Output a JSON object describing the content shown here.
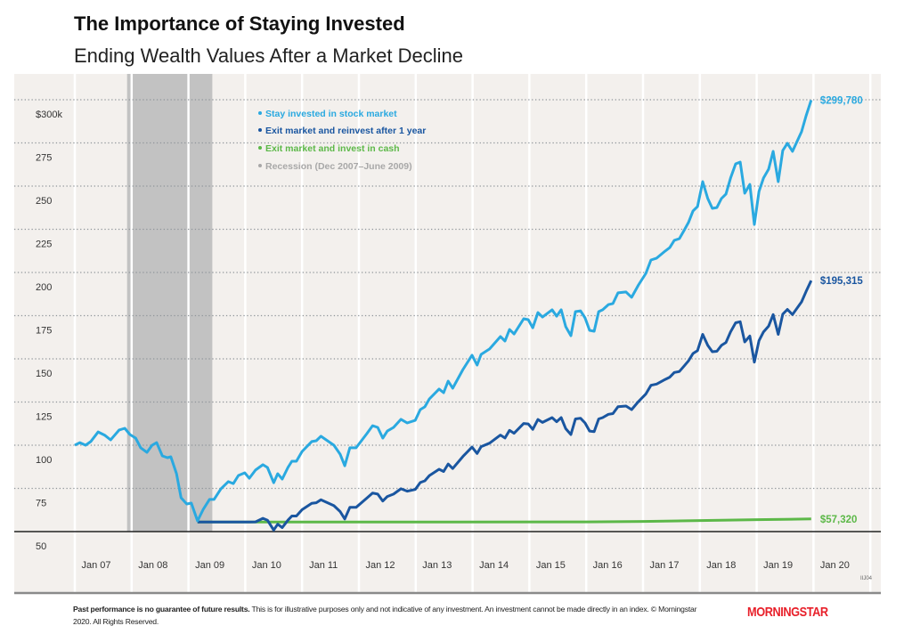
{
  "header": {
    "title": "The Importance of Staying Invested",
    "subtitle": "Ending Wealth Values After a Market Decline"
  },
  "footer": {
    "disclaimer_bold": "Past performance is no guarantee of future results.",
    "disclaimer": " This is for illustrative purposes only and not indicative of any investment. An investment cannot be made directly in an index. © Morningstar 2020. All Rights Reserved.",
    "code": "IIJ04",
    "logo": "MORNINGSTAR"
  },
  "colors": {
    "stay": "#2aa9e0",
    "reinvest": "#1a56a0",
    "cash": "#5cb848",
    "recession": "#c2c2c2",
    "panel": "#f3f0ed"
  },
  "chart_data": {
    "type": "line",
    "title": "The Importance of Staying Invested",
    "subtitle": "Ending Wealth Values After a Market Decline",
    "xlabel": "",
    "ylabel": "",
    "xlim": [
      2007.0,
      2020.0
    ],
    "ylim": [
      50,
      300
    ],
    "y_ticks": [
      50,
      75,
      100,
      125,
      150,
      175,
      200,
      225,
      250,
      275,
      300
    ],
    "y_tick_labels": [
      "50",
      "75",
      "100",
      "125",
      "150",
      "175",
      "200",
      "225",
      "250",
      "275",
      "$300k"
    ],
    "x_tick_labels": [
      "Jan 07",
      "Jan 08",
      "Jan 09",
      "Jan 10",
      "Jan 11",
      "Jan 12",
      "Jan 13",
      "Jan 14",
      "Jan 15",
      "Jan 16",
      "Jan 17",
      "Jan 18",
      "Jan 19",
      "Jan 20"
    ],
    "grid": true,
    "legend_position": "top-left",
    "legend": [
      {
        "label": "Stay invested in stock market",
        "color": "#2aa9e0"
      },
      {
        "label": "Exit market and reinvest after 1 year",
        "color": "#1a56a0"
      },
      {
        "label": "Exit market and invest in cash",
        "color": "#5cb848"
      },
      {
        "label": "Recession (Dec 2007–June 2009)",
        "color": "#a8a8a8"
      }
    ],
    "recession": {
      "start": 2007.92,
      "end": 2009.42
    },
    "series": [
      {
        "name": "Stay invested in stock market",
        "color": "#2aa9e0",
        "end_label": "$299,780",
        "points": [
          [
            2007.0,
            100
          ],
          [
            2007.09,
            101.5
          ],
          [
            2007.19,
            100
          ],
          [
            2007.28,
            102.1
          ],
          [
            2007.41,
            107.7
          ],
          [
            2007.53,
            105.7
          ],
          [
            2007.63,
            103.1
          ],
          [
            2007.78,
            108.8
          ],
          [
            2007.88,
            109.8
          ],
          [
            2007.97,
            106.2
          ],
          [
            2008.07,
            104.1
          ],
          [
            2008.16,
            98.5
          ],
          [
            2008.27,
            95.9
          ],
          [
            2008.36,
            100
          ],
          [
            2008.44,
            101.5
          ],
          [
            2008.54,
            93.8
          ],
          [
            2008.63,
            92.8
          ],
          [
            2008.69,
            93.3
          ],
          [
            2008.79,
            83.5
          ],
          [
            2008.87,
            69.6
          ],
          [
            2008.97,
            66.0
          ],
          [
            2009.05,
            66.5
          ],
          [
            2009.16,
            56.2
          ],
          [
            2009.26,
            62.9
          ],
          [
            2009.37,
            68.6
          ],
          [
            2009.45,
            68.6
          ],
          [
            2009.57,
            74.7
          ],
          [
            2009.7,
            78.9
          ],
          [
            2009.79,
            77.8
          ],
          [
            2009.88,
            82.5
          ],
          [
            2009.99,
            84.0
          ],
          [
            2010.07,
            80.9
          ],
          [
            2010.18,
            85.6
          ],
          [
            2010.31,
            88.7
          ],
          [
            2010.39,
            87.1
          ],
          [
            2010.5,
            78.3
          ],
          [
            2010.57,
            83.5
          ],
          [
            2010.65,
            80.4
          ],
          [
            2010.75,
            87.1
          ],
          [
            2010.82,
            90.7
          ],
          [
            2010.9,
            90.7
          ],
          [
            2011.0,
            96.4
          ],
          [
            2011.17,
            102.1
          ],
          [
            2011.25,
            102.6
          ],
          [
            2011.33,
            105.2
          ],
          [
            2011.56,
            100
          ],
          [
            2011.67,
            94.8
          ],
          [
            2011.75,
            88.1
          ],
          [
            2011.84,
            98.5
          ],
          [
            2011.95,
            98.5
          ],
          [
            2012.14,
            106.7
          ],
          [
            2012.24,
            111.3
          ],
          [
            2012.33,
            110.3
          ],
          [
            2012.42,
            104.1
          ],
          [
            2012.5,
            108.2
          ],
          [
            2012.61,
            110.3
          ],
          [
            2012.74,
            115.0
          ],
          [
            2012.85,
            112.9
          ],
          [
            2012.99,
            114.4
          ],
          [
            2013.08,
            120.6
          ],
          [
            2013.16,
            122.2
          ],
          [
            2013.24,
            126.8
          ],
          [
            2013.41,
            132.5
          ],
          [
            2013.49,
            130.4
          ],
          [
            2013.57,
            137.1
          ],
          [
            2013.65,
            133.0
          ],
          [
            2013.83,
            143.8
          ],
          [
            2013.99,
            152.1
          ],
          [
            2014.08,
            146.4
          ],
          [
            2014.15,
            152.6
          ],
          [
            2014.3,
            155.7
          ],
          [
            2014.49,
            162.9
          ],
          [
            2014.57,
            160.3
          ],
          [
            2014.65,
            167.0
          ],
          [
            2014.73,
            164.4
          ],
          [
            2014.9,
            173.2
          ],
          [
            2014.98,
            172.7
          ],
          [
            2015.06,
            168.0
          ],
          [
            2015.15,
            176.8
          ],
          [
            2015.23,
            174.2
          ],
          [
            2015.4,
            178.4
          ],
          [
            2015.48,
            174.7
          ],
          [
            2015.56,
            178.4
          ],
          [
            2015.64,
            168.6
          ],
          [
            2015.73,
            163.4
          ],
          [
            2015.81,
            177.3
          ],
          [
            2015.9,
            177.8
          ],
          [
            2015.98,
            173.7
          ],
          [
            2016.06,
            166.5
          ],
          [
            2016.14,
            166.0
          ],
          [
            2016.22,
            177.3
          ],
          [
            2016.29,
            178.4
          ],
          [
            2016.39,
            181.4
          ],
          [
            2016.47,
            182.0
          ],
          [
            2016.56,
            188.2
          ],
          [
            2016.7,
            188.7
          ],
          [
            2016.8,
            185.6
          ],
          [
            2016.92,
            192.8
          ],
          [
            2017.05,
            199.5
          ],
          [
            2017.14,
            207.2
          ],
          [
            2017.24,
            208.3
          ],
          [
            2017.39,
            212.4
          ],
          [
            2017.47,
            214.4
          ],
          [
            2017.55,
            218.6
          ],
          [
            2017.64,
            219.6
          ],
          [
            2017.72,
            224.2
          ],
          [
            2017.8,
            228.9
          ],
          [
            2017.88,
            235.6
          ],
          [
            2017.96,
            238.2
          ],
          [
            2018.05,
            252.6
          ],
          [
            2018.14,
            242.8
          ],
          [
            2018.22,
            237.1
          ],
          [
            2018.3,
            237.6
          ],
          [
            2018.38,
            242.8
          ],
          [
            2018.46,
            245.4
          ],
          [
            2018.54,
            254.7
          ],
          [
            2018.63,
            262.9
          ],
          [
            2018.71,
            263.9
          ],
          [
            2018.79,
            245.9
          ],
          [
            2018.88,
            251.0
          ],
          [
            2018.96,
            227.8
          ],
          [
            2019.04,
            246.9
          ],
          [
            2019.12,
            254.7
          ],
          [
            2019.21,
            259.8
          ],
          [
            2019.29,
            270.1
          ],
          [
            2019.38,
            252.6
          ],
          [
            2019.46,
            270.6
          ],
          [
            2019.54,
            274.8
          ],
          [
            2019.63,
            270.1
          ],
          [
            2019.79,
            281.5
          ],
          [
            2019.87,
            290.7
          ],
          [
            2019.96,
            299.78
          ]
        ]
      },
      {
        "name": "Exit market and reinvest after 1 year",
        "color": "#1a56a0",
        "end_label": "$195,315",
        "points": [
          [
            2009.16,
            55.5
          ],
          [
            2010.07,
            55.5
          ],
          [
            2010.18,
            55.6
          ],
          [
            2010.31,
            57.7
          ],
          [
            2010.39,
            56.6
          ],
          [
            2010.5,
            50.9
          ],
          [
            2010.57,
            54.3
          ],
          [
            2010.65,
            52.3
          ],
          [
            2010.75,
            56.6
          ],
          [
            2010.82,
            59.0
          ],
          [
            2010.9,
            59.0
          ],
          [
            2011.0,
            62.7
          ],
          [
            2011.17,
            66.4
          ],
          [
            2011.25,
            66.7
          ],
          [
            2011.33,
            68.4
          ],
          [
            2011.56,
            65.0
          ],
          [
            2011.67,
            61.6
          ],
          [
            2011.75,
            57.3
          ],
          [
            2011.84,
            64.0
          ],
          [
            2011.95,
            64.0
          ],
          [
            2012.14,
            69.4
          ],
          [
            2012.24,
            72.3
          ],
          [
            2012.33,
            71.7
          ],
          [
            2012.42,
            67.7
          ],
          [
            2012.5,
            70.3
          ],
          [
            2012.61,
            71.7
          ],
          [
            2012.74,
            74.8
          ],
          [
            2012.85,
            73.4
          ],
          [
            2012.99,
            74.4
          ],
          [
            2013.08,
            78.4
          ],
          [
            2013.16,
            79.4
          ],
          [
            2013.24,
            82.4
          ],
          [
            2013.41,
            86.1
          ],
          [
            2013.49,
            84.8
          ],
          [
            2013.57,
            89.1
          ],
          [
            2013.65,
            86.5
          ],
          [
            2013.83,
            93.5
          ],
          [
            2013.99,
            98.9
          ],
          [
            2014.08,
            95.2
          ],
          [
            2014.15,
            99.2
          ],
          [
            2014.3,
            101.2
          ],
          [
            2014.49,
            105.9
          ],
          [
            2014.57,
            104.2
          ],
          [
            2014.65,
            108.6
          ],
          [
            2014.73,
            106.9
          ],
          [
            2014.9,
            112.6
          ],
          [
            2014.98,
            112.3
          ],
          [
            2015.06,
            109.2
          ],
          [
            2015.15,
            114.9
          ],
          [
            2015.23,
            113.2
          ],
          [
            2015.4,
            116.0
          ],
          [
            2015.48,
            113.6
          ],
          [
            2015.56,
            116.0
          ],
          [
            2015.64,
            109.6
          ],
          [
            2015.73,
            106.2
          ],
          [
            2015.81,
            115.2
          ],
          [
            2015.9,
            115.6
          ],
          [
            2015.98,
            112.9
          ],
          [
            2016.06,
            108.2
          ],
          [
            2016.14,
            107.9
          ],
          [
            2016.22,
            115.2
          ],
          [
            2016.29,
            116.0
          ],
          [
            2016.39,
            117.9
          ],
          [
            2016.47,
            118.3
          ],
          [
            2016.56,
            122.3
          ],
          [
            2016.7,
            122.7
          ],
          [
            2016.8,
            120.6
          ],
          [
            2016.92,
            125.3
          ],
          [
            2017.05,
            129.7
          ],
          [
            2017.14,
            134.7
          ],
          [
            2017.24,
            135.4
          ],
          [
            2017.39,
            138.1
          ],
          [
            2017.47,
            139.4
          ],
          [
            2017.55,
            142.1
          ],
          [
            2017.64,
            142.7
          ],
          [
            2017.72,
            145.7
          ],
          [
            2017.8,
            148.8
          ],
          [
            2017.88,
            153.1
          ],
          [
            2017.96,
            154.8
          ],
          [
            2018.05,
            164.2
          ],
          [
            2018.14,
            157.8
          ],
          [
            2018.22,
            154.1
          ],
          [
            2018.3,
            154.4
          ],
          [
            2018.38,
            157.8
          ],
          [
            2018.46,
            159.5
          ],
          [
            2018.54,
            165.6
          ],
          [
            2018.63,
            170.9
          ],
          [
            2018.71,
            171.5
          ],
          [
            2018.79,
            159.8
          ],
          [
            2018.88,
            163.2
          ],
          [
            2018.96,
            148.1
          ],
          [
            2019.04,
            160.5
          ],
          [
            2019.12,
            165.6
          ],
          [
            2019.21,
            168.9
          ],
          [
            2019.29,
            175.6
          ],
          [
            2019.38,
            164.2
          ],
          [
            2019.46,
            175.9
          ],
          [
            2019.54,
            178.6
          ],
          [
            2019.63,
            175.6
          ],
          [
            2019.79,
            183.0
          ],
          [
            2019.87,
            189.0
          ],
          [
            2019.96,
            195.315
          ]
        ]
      },
      {
        "name": "Exit market and invest in cash",
        "color": "#5cb848",
        "end_label": "$57,320",
        "points": [
          [
            2009.16,
            55.5
          ],
          [
            2012.0,
            55.5
          ],
          [
            2016.0,
            55.6
          ],
          [
            2017.0,
            55.9
          ],
          [
            2018.0,
            56.4
          ],
          [
            2019.0,
            56.9
          ],
          [
            2019.96,
            57.32
          ]
        ]
      }
    ]
  }
}
